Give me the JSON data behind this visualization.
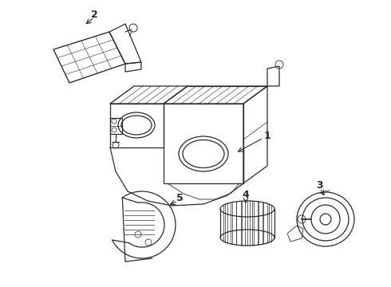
{
  "bg_color": "#ffffff",
  "line_color": "#2a2a2a",
  "label_color": "#111111",
  "figsize": [
    4.9,
    3.6
  ],
  "dpi": 100,
  "lw": 0.9
}
